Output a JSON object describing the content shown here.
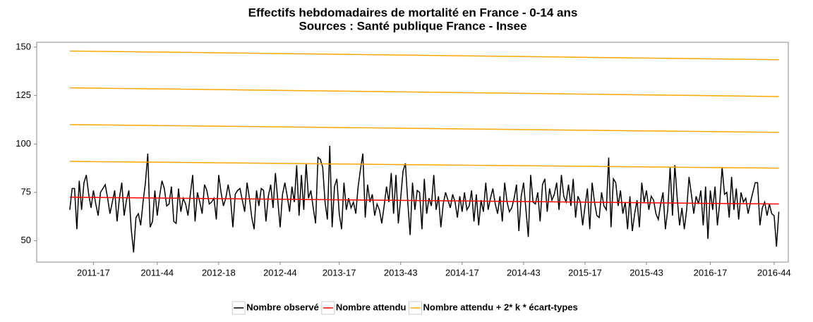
{
  "chart_data": {
    "type": "line",
    "title": "Effectifs hebdomadaires de mortalité en France - 0-14 ans",
    "subtitle": "Sources : Santé publique France - Insee",
    "xlim": [
      -14,
      304
    ],
    "xticks": [
      {
        "value": 10,
        "label": "2011-17"
      },
      {
        "value": 37,
        "label": "2011-44"
      },
      {
        "value": 63,
        "label": "2012-18"
      },
      {
        "value": 89,
        "label": "2012-44"
      },
      {
        "value": 114,
        "label": "2013-17"
      },
      {
        "value": 140,
        "label": "2013-43"
      },
      {
        "value": 166,
        "label": "2014-17"
      },
      {
        "value": 192,
        "label": "2014-43"
      },
      {
        "value": 218,
        "label": "2015-17"
      },
      {
        "value": 244,
        "label": "2015-43"
      },
      {
        "value": 271,
        "label": "2016-17"
      },
      {
        "value": 298,
        "label": "2016-44"
      }
    ],
    "ylim": [
      39,
      152.5
    ],
    "yticks": [
      50,
      75,
      100,
      125,
      150
    ],
    "grid": false,
    "legend": "bottom",
    "series": [
      {
        "name": "Nombre observé",
        "color": "#000000",
        "values": [
          66,
          77,
          77,
          56,
          81,
          66,
          80,
          84,
          74,
          67,
          76,
          69,
          63,
          75,
          77,
          79,
          72,
          64,
          70,
          76,
          60,
          72,
          80,
          63,
          71,
          76,
          56,
          44,
          62,
          64,
          58,
          70,
          80,
          95,
          57,
          60,
          76,
          63,
          73,
          81,
          77,
          68,
          69,
          78,
          60,
          59,
          77,
          65,
          72,
          69,
          63,
          74,
          84,
          60,
          75,
          70,
          64,
          79,
          76,
          69,
          70,
          72,
          61,
          84,
          75,
          68,
          72,
          79,
          72,
          57,
          74,
          76,
          77,
          71,
          65,
          80,
          72,
          62,
          56,
          76,
          68,
          77,
          76,
          60,
          73,
          79,
          67,
          85,
          71,
          57,
          74,
          80,
          73,
          65,
          78,
          70,
          89,
          63,
          84,
          66,
          90,
          72,
          76,
          67,
          59,
          93,
          92,
          88,
          70,
          61,
          99,
          57,
          78,
          82,
          64,
          56,
          80,
          66,
          72,
          67,
          70,
          64,
          78,
          87,
          95,
          62,
          79,
          70,
          74,
          63,
          69,
          66,
          59,
          68,
          78,
          70,
          85,
          64,
          84,
          59,
          72,
          86,
          90,
          70,
          53,
          80,
          66,
          76,
          75,
          56,
          82,
          64,
          72,
          68,
          84,
          66,
          73,
          57,
          69,
          75,
          71,
          67,
          74,
          70,
          62,
          73,
          65,
          75,
          66,
          68,
          76,
          60,
          74,
          58,
          71,
          65,
          80,
          66,
          72,
          77,
          69,
          64,
          73,
          60,
          80,
          70,
          65,
          67,
          72,
          79,
          55,
          73,
          80,
          66,
          52,
          84,
          70,
          69,
          75,
          60,
          79,
          82,
          65,
          77,
          71,
          74,
          80,
          66,
          84,
          73,
          70,
          79,
          68,
          82,
          62,
          73,
          70,
          58,
          68,
          77,
          56,
          80,
          70,
          63,
          62,
          75,
          68,
          66,
          93,
          57,
          82,
          80,
          68,
          76,
          64,
          70,
          56,
          73,
          55,
          64,
          71,
          57,
          80,
          70,
          76,
          66,
          73,
          71,
          64,
          61,
          69,
          75,
          56,
          66,
          88,
          63,
          89,
          72,
          58,
          67,
          56,
          66,
          83,
          74,
          64,
          73,
          69,
          76,
          58,
          78,
          51,
          76,
          66,
          78,
          58,
          70,
          88,
          74,
          75,
          62,
          83,
          66,
          77,
          61,
          75,
          70,
          72,
          64,
          70,
          75,
          80,
          80,
          58,
          67,
          70,
          63,
          69,
          64,
          63,
          47,
          65
        ]
      },
      {
        "name": "Nombre attendu",
        "color": "#ff0000",
        "x": [
          0,
          300
        ],
        "values": [
          72.5,
          69
        ]
      },
      {
        "name": "Nombre attendu + 2* k * écart-types",
        "color": "#ffa500",
        "x": [
          0,
          300
        ],
        "values": [
          91,
          87.5
        ]
      },
      {
        "color": "#ffa500",
        "x": [
          0,
          300
        ],
        "values": [
          110,
          106
        ]
      },
      {
        "color": "#ffa500",
        "x": [
          0,
          300
        ],
        "values": [
          129,
          124.5
        ]
      },
      {
        "color": "#ffa500",
        "x": [
          0,
          300
        ],
        "values": [
          148,
          143.5
        ]
      }
    ]
  }
}
